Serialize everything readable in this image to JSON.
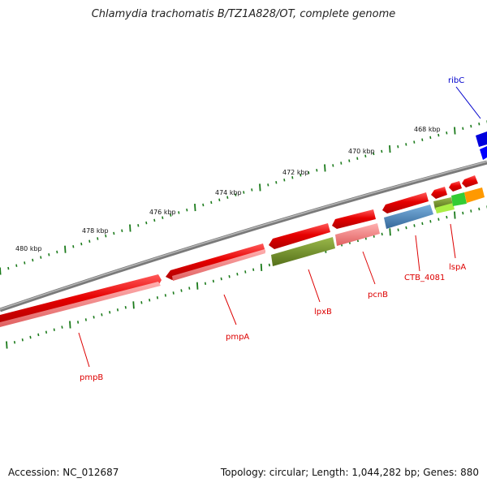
{
  "title": "Chlamydia trachomatis B/TZ1A828/OT, complete genome",
  "footer": {
    "accession": "Accession: NC_012687",
    "summary": "Topology: circular; Length: 1,044,282 bp; Genes: 880"
  },
  "scale_labels": [
    "468 kbp",
    "470 kbp",
    "472 kbp",
    "474 kbp",
    "476 kbp",
    "478 kbp",
    "480 kbp"
  ],
  "genes": [
    {
      "label": "ribC",
      "color": "#0000cc"
    },
    {
      "label": "pmpB",
      "color": "#dd0000"
    },
    {
      "label": "pmpA",
      "color": "#dd0000"
    },
    {
      "label": "lpxB",
      "color": "#dd0000"
    },
    {
      "label": "pcnB",
      "color": "#dd0000"
    },
    {
      "label": "CTB_4081",
      "color": "#dd0000"
    },
    {
      "label": "lspA",
      "color": "#dd0000"
    }
  ],
  "colors": {
    "backbone": "#7a7a7a",
    "ticks": "#1a7a1a",
    "cds_red": "#e60000",
    "cds_pink": "#f08080",
    "olive": "#6b8e23",
    "steel": "#4682b4",
    "lime": "#99dd33",
    "green": "#33cc33",
    "orange": "#ff9900",
    "blue": "#0000dd"
  }
}
